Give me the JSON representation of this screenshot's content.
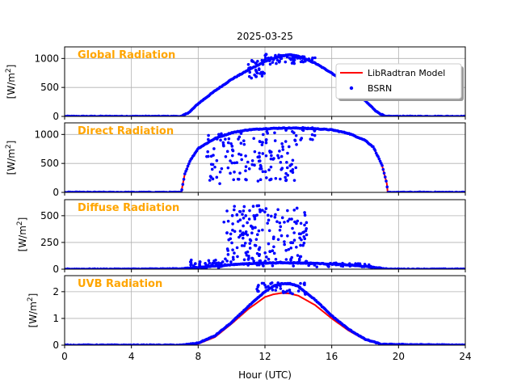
{
  "chart_data": {
    "type": "line",
    "title": "2025-03-25",
    "xlabel": "Hour (UTC)",
    "xlim": [
      0,
      24
    ],
    "xticks": [
      0,
      4,
      8,
      12,
      16,
      20,
      24
    ],
    "grid": true,
    "colors": {
      "model": "#ff0000",
      "measured": "#0000ff",
      "panel_label": "#ffa500"
    },
    "legend": {
      "placement": "top-right of first panel",
      "entries": [
        {
          "label": "LibRadtran Model",
          "marker": "line",
          "color": "#ff0000"
        },
        {
          "label": "BSRN",
          "marker": "dot",
          "color": "#0000ff"
        }
      ]
    },
    "panels": [
      {
        "name": "Global Radiation",
        "ylabel_main": "[W/m",
        "ylabel_sup": "2",
        "ylabel_end": "]",
        "ylim": [
          0,
          1200
        ],
        "yticks": [
          0,
          500,
          1000
        ],
        "model_curve": {
          "x": [
            0,
            7,
            7.5,
            8,
            9,
            10,
            11,
            12,
            12.5,
            13,
            13.5,
            14,
            15,
            16,
            17,
            18,
            18.7,
            19.2,
            24
          ],
          "y": [
            0,
            0,
            80,
            220,
            440,
            640,
            800,
            950,
            1000,
            1050,
            1060,
            1040,
            920,
            750,
            530,
            270,
            80,
            0,
            0
          ]
        },
        "scatter_clusters": [
          {
            "xrange": [
              11,
              12
            ],
            "yrange": [
              640,
              980
            ],
            "count": 30
          },
          {
            "xrange": [
              12,
              14
            ],
            "yrange": [
              900,
              1080
            ],
            "count": 45
          },
          {
            "xrange": [
              14,
              15
            ],
            "yrange": [
              920,
              1040
            ],
            "count": 15
          }
        ]
      },
      {
        "name": "Direct Radiation",
        "ylabel_main": "[W/m",
        "ylabel_sup": "2",
        "ylabel_end": "]",
        "ylim": [
          0,
          1200
        ],
        "yticks": [
          0,
          500,
          1000
        ],
        "model_curve": {
          "x": [
            0,
            7,
            7.05,
            7.2,
            7.5,
            8,
            9,
            10,
            11,
            12,
            13,
            14,
            15,
            16,
            17,
            18,
            18.5,
            19,
            19.3,
            19.35,
            24
          ],
          "y": [
            0,
            0,
            100,
            320,
            540,
            760,
            930,
            1030,
            1080,
            1100,
            1110,
            1110,
            1100,
            1080,
            1020,
            900,
            780,
            480,
            150,
            0,
            0
          ]
        },
        "scatter_clusters": [
          {
            "xrange": [
              8.5,
              12
            ],
            "yrange": [
              150,
              1050
            ],
            "count": 90
          },
          {
            "xrange": [
              12,
              14
            ],
            "yrange": [
              200,
              1100
            ],
            "count": 60
          },
          {
            "xrange": [
              14,
              15
            ],
            "yrange": [
              900,
              1120
            ],
            "count": 15
          }
        ]
      },
      {
        "name": "Diffuse Radiation",
        "ylabel_main": "[W/m",
        "ylabel_sup": "2",
        "ylabel_end": "]",
        "ylim": [
          0,
          650
        ],
        "yticks": [
          0,
          250,
          500
        ],
        "model_curve": {
          "x": [
            0,
            3,
            6,
            7,
            8,
            9,
            10,
            11,
            12,
            13,
            14,
            15,
            16,
            17,
            18,
            19,
            19.5,
            24
          ],
          "y": [
            0,
            0,
            2,
            5,
            15,
            30,
            42,
            52,
            58,
            60,
            58,
            55,
            48,
            40,
            25,
            8,
            0,
            0
          ]
        },
        "scatter_clusters": [
          {
            "xrange": [
              7.5,
              9.5
            ],
            "yrange": [
              10,
              90
            ],
            "count": 40
          },
          {
            "xrange": [
              9.5,
              12
            ],
            "yrange": [
              30,
              600
            ],
            "count": 110
          },
          {
            "xrange": [
              12,
              14.5
            ],
            "yrange": [
              30,
              580
            ],
            "count": 90
          },
          {
            "xrange": [
              14.5,
              18.5
            ],
            "yrange": [
              20,
              60
            ],
            "count": 30
          }
        ]
      },
      {
        "name": "UVB Radiation",
        "ylabel_main": "[W/m",
        "ylabel_sup": "2",
        "ylabel_end": "]",
        "ylim": [
          0,
          2.6
        ],
        "yticks": [
          0,
          1,
          2
        ],
        "model_curve": {
          "x": [
            0,
            7,
            8,
            9,
            10,
            11,
            12,
            12.5,
            13,
            13.5,
            14,
            15,
            16,
            17,
            18,
            19,
            24
          ],
          "y": [
            0,
            0,
            0.05,
            0.3,
            0.8,
            1.35,
            1.8,
            1.9,
            1.95,
            1.93,
            1.85,
            1.5,
            1.0,
            0.55,
            0.2,
            0.02,
            0
          ]
        },
        "measured_curve": {
          "x": [
            0,
            7,
            8,
            9,
            10,
            11,
            12,
            12.5,
            13,
            13.5,
            14,
            15,
            16,
            17,
            18,
            19,
            24
          ],
          "y": [
            0,
            0,
            0.08,
            0.35,
            0.85,
            1.45,
            2.0,
            2.2,
            2.3,
            2.3,
            2.2,
            1.7,
            1.1,
            0.6,
            0.22,
            0.03,
            0
          ]
        },
        "scatter_clusters": [
          {
            "xrange": [
              11.5,
              14.5
            ],
            "yrange": [
              1.9,
              2.35
            ],
            "count": 40
          }
        ]
      }
    ]
  }
}
